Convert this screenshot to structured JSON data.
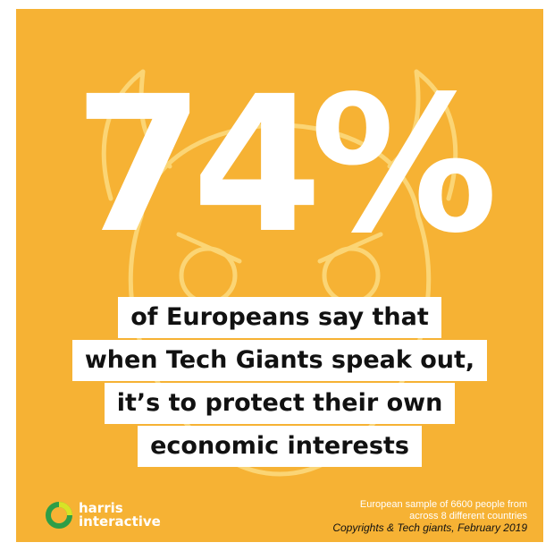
{
  "colors": {
    "background": "#f6b234",
    "text_box": "#ffffff",
    "text": "#111111"
  },
  "stat": {
    "value": "74%"
  },
  "headline": {
    "lines": [
      "of Europeans say that",
      "when Tech Giants speak out,",
      "it’s to protect their own",
      "economic interests"
    ]
  },
  "logo": {
    "line1": "harris",
    "line2": "interactive",
    "icon": "harris-ring-icon"
  },
  "source": {
    "line1": "European sample of 6600 people from",
    "line2": "across 8 different countries",
    "line3": "Copyrights & Tech giants, February 2019"
  }
}
